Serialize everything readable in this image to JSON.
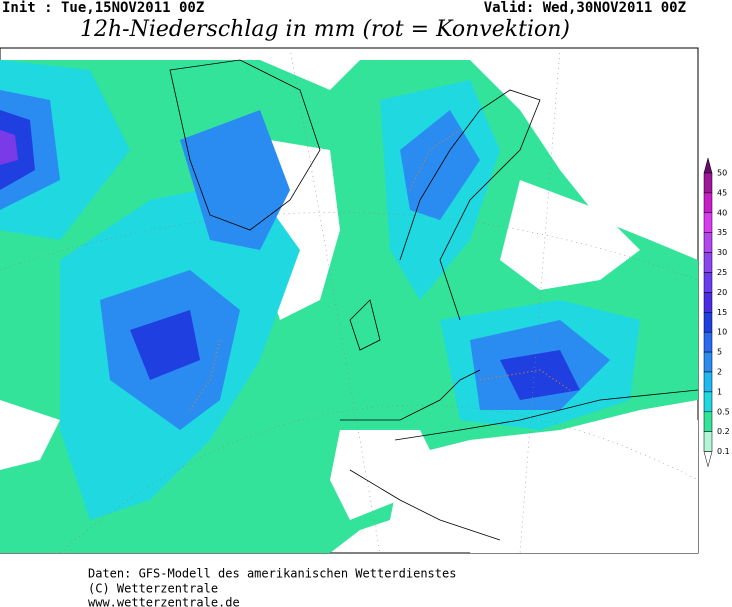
{
  "header": {
    "init": "Init : Tue,15NOV2011 00Z",
    "valid": "Valid: Wed,30NOV2011 00Z",
    "title": "12h-Niederschlag in mm (rot = Konvektion)"
  },
  "legend": {
    "labels": [
      "50",
      "45",
      "40",
      "35",
      "30",
      "25",
      "20",
      "15",
      "10",
      "5",
      "2",
      "1",
      "0.5",
      "0.2",
      "0.1"
    ]
  },
  "footer": {
    "lines": [
      "Daten: GFS-Modell des amerikanischen Wetterdienstes",
      "(C) Wetterzentrale",
      "www.wetterzentrale.de"
    ]
  }
}
